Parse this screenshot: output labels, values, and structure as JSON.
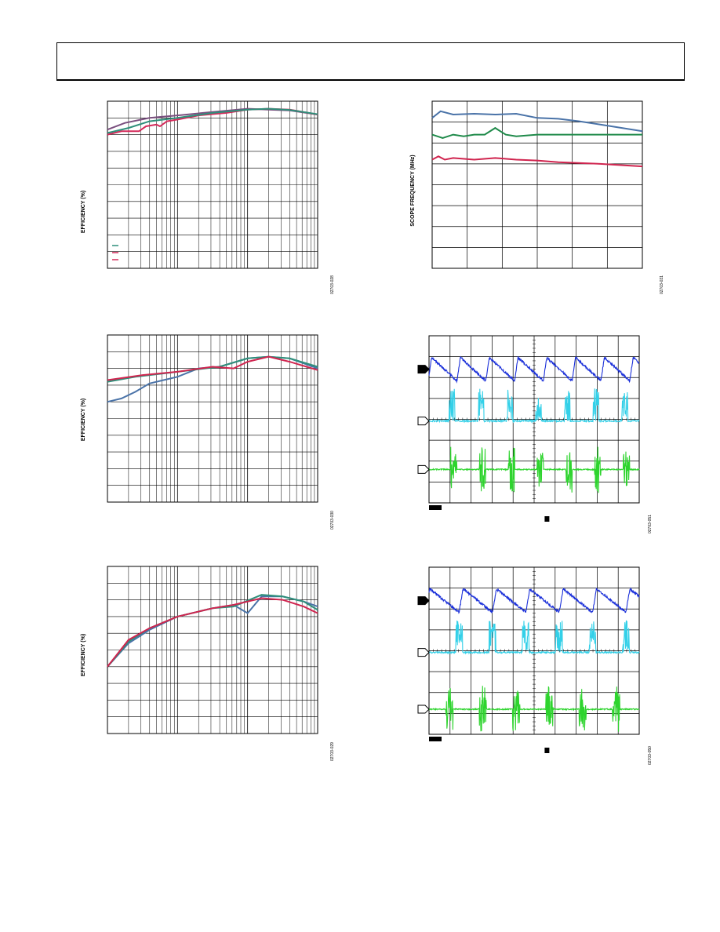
{
  "page": {
    "header_title": ""
  },
  "charts": [
    {
      "id": "eff1",
      "ylabel": "EFFICIENCY (%)",
      "fig_code": "02703-028"
    },
    {
      "id": "scope_freq",
      "ylabel": "SCOPE FREQUENCY (MHz)",
      "fig_code": "02703-031"
    },
    {
      "id": "eff2",
      "ylabel": "EFFICIENCY (%)",
      "fig_code": "02703-030"
    },
    {
      "id": "scope1",
      "ylabel": "",
      "fig_code": "02703-051"
    },
    {
      "id": "eff3",
      "ylabel": "EFFICIENCY (%)",
      "fig_code": "02703-029"
    },
    {
      "id": "scope2",
      "ylabel": "",
      "fig_code": "02703-050"
    }
  ],
  "chart_data": [
    {
      "type": "line",
      "id": "eff1",
      "xscale": "log",
      "xdecades": 3,
      "ydivisions": 10,
      "series": [
        {
          "color": "#7a4f7f",
          "points": [
            [
              0,
              0.83
            ],
            [
              0.25,
              0.87
            ],
            [
              0.6,
              0.9
            ],
            [
              1,
              0.915
            ],
            [
              1.5,
              0.935
            ],
            [
              2,
              0.955
            ],
            [
              2.3,
              0.95
            ],
            [
              2.6,
              0.945
            ],
            [
              3,
              0.92
            ]
          ]
        },
        {
          "color": "#d42a5a",
          "points": [
            [
              0,
              0.8
            ],
            [
              0.2,
              0.82
            ],
            [
              0.45,
              0.82
            ],
            [
              0.55,
              0.85
            ],
            [
              0.7,
              0.86
            ],
            [
              0.75,
              0.85
            ],
            [
              0.85,
              0.88
            ],
            [
              1,
              0.89
            ],
            [
              1.3,
              0.915
            ],
            [
              1.7,
              0.93
            ],
            [
              2,
              0.95
            ],
            [
              2.3,
              0.955
            ],
            [
              2.6,
              0.95
            ],
            [
              3,
              0.92
            ]
          ]
        },
        {
          "color": "#2e8f7a",
          "points": [
            [
              0,
              0.81
            ],
            [
              0.3,
              0.84
            ],
            [
              0.6,
              0.88
            ],
            [
              1,
              0.9
            ],
            [
              1.5,
              0.93
            ],
            [
              2,
              0.95
            ],
            [
              2.3,
              0.955
            ],
            [
              2.6,
              0.948
            ],
            [
              3,
              0.922
            ]
          ]
        }
      ],
      "legend_colors": [
        "#2e8f7a",
        "#d42a5a",
        "#d42a5a"
      ]
    },
    {
      "type": "line",
      "id": "scope_freq",
      "xscale": "linear",
      "xdivisions": 6,
      "ydivisions": 8,
      "series": [
        {
          "color": "#4a73a8",
          "points": [
            [
              0,
              0.9
            ],
            [
              0.04,
              0.94
            ],
            [
              0.1,
              0.92
            ],
            [
              0.2,
              0.925
            ],
            [
              0.3,
              0.92
            ],
            [
              0.4,
              0.925
            ],
            [
              0.5,
              0.9
            ],
            [
              0.6,
              0.895
            ],
            [
              0.7,
              0.88
            ],
            [
              0.8,
              0.86
            ],
            [
              1,
              0.82
            ]
          ]
        },
        {
          "color": "#1f8a4a",
          "points": [
            [
              0,
              0.8
            ],
            [
              0.05,
              0.78
            ],
            [
              0.1,
              0.8
            ],
            [
              0.15,
              0.79
            ],
            [
              0.2,
              0.8
            ],
            [
              0.25,
              0.8
            ],
            [
              0.3,
              0.84
            ],
            [
              0.35,
              0.8
            ],
            [
              0.4,
              0.79
            ],
            [
              0.5,
              0.8
            ],
            [
              0.6,
              0.8
            ],
            [
              1,
              0.8
            ]
          ]
        },
        {
          "color": "#d0254f",
          "points": [
            [
              0,
              0.65
            ],
            [
              0.03,
              0.67
            ],
            [
              0.06,
              0.65
            ],
            [
              0.1,
              0.66
            ],
            [
              0.2,
              0.65
            ],
            [
              0.3,
              0.66
            ],
            [
              0.4,
              0.65
            ],
            [
              0.5,
              0.645
            ],
            [
              0.6,
              0.635
            ],
            [
              0.8,
              0.625
            ],
            [
              1,
              0.61
            ]
          ]
        }
      ]
    },
    {
      "type": "line",
      "id": "eff2",
      "xscale": "log",
      "xdecades": 3,
      "ydivisions": 10,
      "series": [
        {
          "color": "#4a73a8",
          "points": [
            [
              0,
              0.6
            ],
            [
              0.2,
              0.62
            ],
            [
              0.4,
              0.66
            ],
            [
              0.6,
              0.71
            ],
            [
              0.8,
              0.73
            ],
            [
              1,
              0.75
            ],
            [
              1.3,
              0.8
            ],
            [
              1.6,
              0.81
            ],
            [
              2,
              0.86
            ],
            [
              2.3,
              0.87
            ],
            [
              2.6,
              0.86
            ],
            [
              3,
              0.8
            ]
          ]
        },
        {
          "color": "#2e8f7a",
          "points": [
            [
              0,
              0.72
            ],
            [
              0.4,
              0.75
            ],
            [
              0.8,
              0.77
            ],
            [
              1.2,
              0.79
            ],
            [
              1.6,
              0.81
            ],
            [
              2,
              0.86
            ],
            [
              2.3,
              0.87
            ],
            [
              2.6,
              0.86
            ],
            [
              3,
              0.81
            ]
          ]
        },
        {
          "color": "#d0254f",
          "points": [
            [
              0,
              0.73
            ],
            [
              0.5,
              0.76
            ],
            [
              1,
              0.78
            ],
            [
              1.5,
              0.81
            ],
            [
              1.8,
              0.8
            ],
            [
              2,
              0.84
            ],
            [
              2.3,
              0.87
            ],
            [
              2.6,
              0.84
            ],
            [
              3,
              0.79
            ]
          ]
        }
      ]
    },
    {
      "type": "scope",
      "id": "scope1",
      "xdivisions": 10,
      "ydivisions": 8,
      "traces": [
        {
          "color": "#1a2fd9",
          "kind": "sawtooth",
          "level": 0.8,
          "amp": 0.14,
          "periods": 7.3,
          "phase": 0.03
        },
        {
          "color": "#33d0e8",
          "kind": "pulse",
          "level": 0.49,
          "amp": 0.14,
          "periods": 7.3,
          "phase": 0.3
        },
        {
          "color": "#2ed42e",
          "kind": "burst",
          "level": 0.2,
          "amp": 0.14,
          "periods": 7.3,
          "phase": 0.25
        }
      ]
    },
    {
      "type": "line",
      "id": "eff3",
      "xscale": "log",
      "xdecades": 3,
      "ydivisions": 10,
      "series": [
        {
          "color": "#4a73a8",
          "points": [
            [
              0,
              0.4
            ],
            [
              0.3,
              0.54
            ],
            [
              0.6,
              0.62
            ],
            [
              1,
              0.7
            ],
            [
              1.5,
              0.75
            ],
            [
              1.8,
              0.77
            ],
            [
              2,
              0.72
            ],
            [
              2.2,
              0.82
            ],
            [
              2.5,
              0.82
            ],
            [
              2.8,
              0.79
            ],
            [
              3,
              0.76
            ]
          ]
        },
        {
          "color": "#2e8f7a",
          "points": [
            [
              0,
              0.4
            ],
            [
              0.3,
              0.55
            ],
            [
              0.6,
              0.63
            ],
            [
              1,
              0.7
            ],
            [
              1.5,
              0.75
            ],
            [
              1.8,
              0.76
            ],
            [
              2.2,
              0.83
            ],
            [
              2.5,
              0.82
            ],
            [
              2.8,
              0.79
            ],
            [
              3,
              0.74
            ]
          ]
        },
        {
          "color": "#d0254f",
          "points": [
            [
              0,
              0.4
            ],
            [
              0.3,
              0.56
            ],
            [
              0.6,
              0.63
            ],
            [
              1,
              0.7
            ],
            [
              1.5,
              0.75
            ],
            [
              1.8,
              0.77
            ],
            [
              2.2,
              0.81
            ],
            [
              2.5,
              0.8
            ],
            [
              2.8,
              0.76
            ],
            [
              3,
              0.72
            ]
          ]
        }
      ]
    },
    {
      "type": "scope",
      "id": "scope2",
      "xdivisions": 10,
      "ydivisions": 8,
      "traces": [
        {
          "color": "#1a2fd9",
          "kind": "sawtooth",
          "level": 0.8,
          "amp": 0.14,
          "periods": 6.3,
          "phase": 0.1
        },
        {
          "color": "#33d0e8",
          "kind": "pulse",
          "level": 0.49,
          "amp": 0.14,
          "periods": 6.3,
          "phase": 0.2
        },
        {
          "color": "#2ed42e",
          "kind": "burst",
          "level": 0.15,
          "amp": 0.14,
          "periods": 6.3,
          "phase": 0.5
        }
      ]
    }
  ]
}
